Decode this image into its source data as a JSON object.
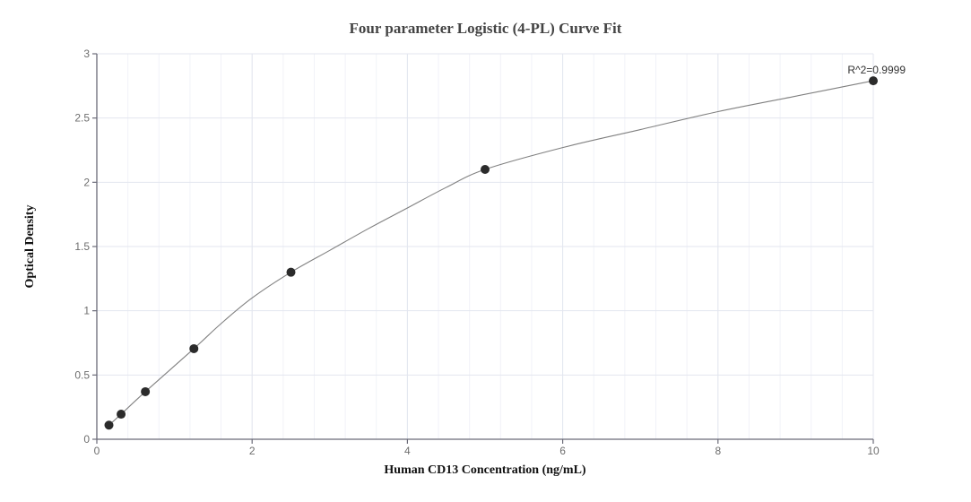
{
  "chart_data": {
    "type": "scatter",
    "title": "Four parameter Logistic (4-PL) Curve Fit",
    "xlabel": "Human CD13 Concentration (ng/mL)",
    "ylabel": "Optical Density",
    "xlim": [
      0,
      10
    ],
    "ylim": [
      0,
      3
    ],
    "x_ticks": [
      0,
      2,
      4,
      6,
      8,
      10
    ],
    "y_ticks": [
      0,
      0.5,
      1,
      1.5,
      2,
      2.5,
      3
    ],
    "x_tick_labels": [
      "0",
      "2",
      "4",
      "6",
      "8",
      "10"
    ],
    "y_tick_labels": [
      "0",
      "0.5",
      "1",
      "1.5",
      "2",
      "2.5",
      "3"
    ],
    "x_minor_step": 0.4,
    "grid": true,
    "legend": null,
    "series": [
      {
        "name": "Standards",
        "x": [
          0.156,
          0.3125,
          0.625,
          1.25,
          2.5,
          5,
          10
        ],
        "y": [
          0.11,
          0.195,
          0.37,
          0.705,
          1.3,
          2.1,
          2.79
        ],
        "marker_color": "#2b2b2b"
      }
    ],
    "fit": {
      "name": "4-PL fit",
      "line_color": "#808080",
      "curve": [
        [
          0.156,
          0.11
        ],
        [
          0.3125,
          0.195
        ],
        [
          0.625,
          0.37
        ],
        [
          1.25,
          0.705
        ],
        [
          1.6,
          0.9
        ],
        [
          2.0,
          1.1
        ],
        [
          2.5,
          1.3
        ],
        [
          3.0,
          1.47
        ],
        [
          3.5,
          1.64
        ],
        [
          4.0,
          1.8
        ],
        [
          4.5,
          1.96
        ],
        [
          5.0,
          2.1
        ],
        [
          6.0,
          2.27
        ],
        [
          7.0,
          2.41
        ],
        [
          8.0,
          2.55
        ],
        [
          9.0,
          2.67
        ],
        [
          10.0,
          2.79
        ]
      ]
    },
    "annotations": [
      {
        "text": "R^2=0.9999",
        "x": 10,
        "y": 2.79
      }
    ]
  },
  "colors": {
    "grid_major": "#e3e6ef",
    "grid_minor": "#f1f2f8",
    "axis": "#6b6b78",
    "marker": "#2b2b2b",
    "curve": "#808080"
  }
}
